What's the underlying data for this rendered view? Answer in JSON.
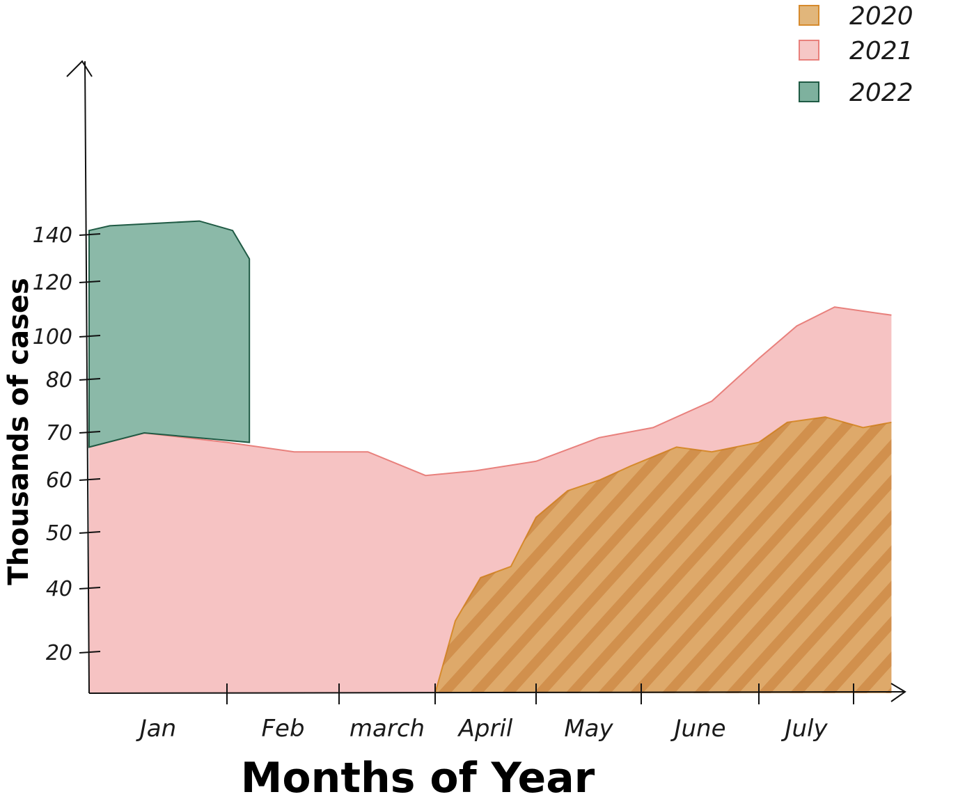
{
  "chart_data": {
    "type": "area",
    "title": "",
    "xlabel": "Months of Year",
    "ylabel": "Thousands of cases",
    "categories": [
      "Jan",
      "Feb",
      "march",
      "April",
      "May",
      "June",
      "July"
    ],
    "y_ticks": [
      20,
      40,
      50,
      60,
      70,
      80,
      100,
      120,
      140
    ],
    "legend_position": "top-right",
    "series": [
      {
        "name": "2020",
        "color": "#d9a45a",
        "points": [
          {
            "x": 3.0,
            "y": 0
          },
          {
            "x": 3.2,
            "y": 30
          },
          {
            "x": 3.45,
            "y": 42
          },
          {
            "x": 3.75,
            "y": 44
          },
          {
            "x": 4.0,
            "y": 53
          },
          {
            "x": 4.3,
            "y": 58
          },
          {
            "x": 4.6,
            "y": 60
          },
          {
            "x": 4.9,
            "y": 63
          },
          {
            "x": 5.3,
            "y": 67
          },
          {
            "x": 5.6,
            "y": 66
          },
          {
            "x": 6.0,
            "y": 68
          },
          {
            "x": 6.3,
            "y": 72
          },
          {
            "x": 6.7,
            "y": 73
          },
          {
            "x": 7.1,
            "y": 71
          },
          {
            "x": 7.4,
            "y": 72
          }
        ]
      },
      {
        "name": "2021",
        "color": "#f4b9b8",
        "points": [
          {
            "x": 0.0,
            "y": 67
          },
          {
            "x": 0.4,
            "y": 70
          },
          {
            "x": 1.0,
            "y": 68
          },
          {
            "x": 1.6,
            "y": 66
          },
          {
            "x": 2.3,
            "y": 66
          },
          {
            "x": 2.9,
            "y": 61
          },
          {
            "x": 3.4,
            "y": 62
          },
          {
            "x": 4.0,
            "y": 64
          },
          {
            "x": 4.6,
            "y": 69
          },
          {
            "x": 5.1,
            "y": 71
          },
          {
            "x": 5.6,
            "y": 76
          },
          {
            "x": 6.0,
            "y": 90
          },
          {
            "x": 6.4,
            "y": 104
          },
          {
            "x": 6.8,
            "y": 111
          },
          {
            "x": 7.4,
            "y": 108
          }
        ]
      },
      {
        "name": "2022",
        "color": "#5e9e86",
        "points": [
          {
            "x": 0.0,
            "y": 142
          },
          {
            "x": 0.15,
            "y": 144
          },
          {
            "x": 0.8,
            "y": 146
          },
          {
            "x": 1.05,
            "y": 142
          },
          {
            "x": 1.2,
            "y": 130
          },
          {
            "x": 1.2,
            "y": 68
          },
          {
            "x": 0.4,
            "y": 70
          },
          {
            "x": 0.0,
            "y": 67
          }
        ]
      }
    ]
  }
}
